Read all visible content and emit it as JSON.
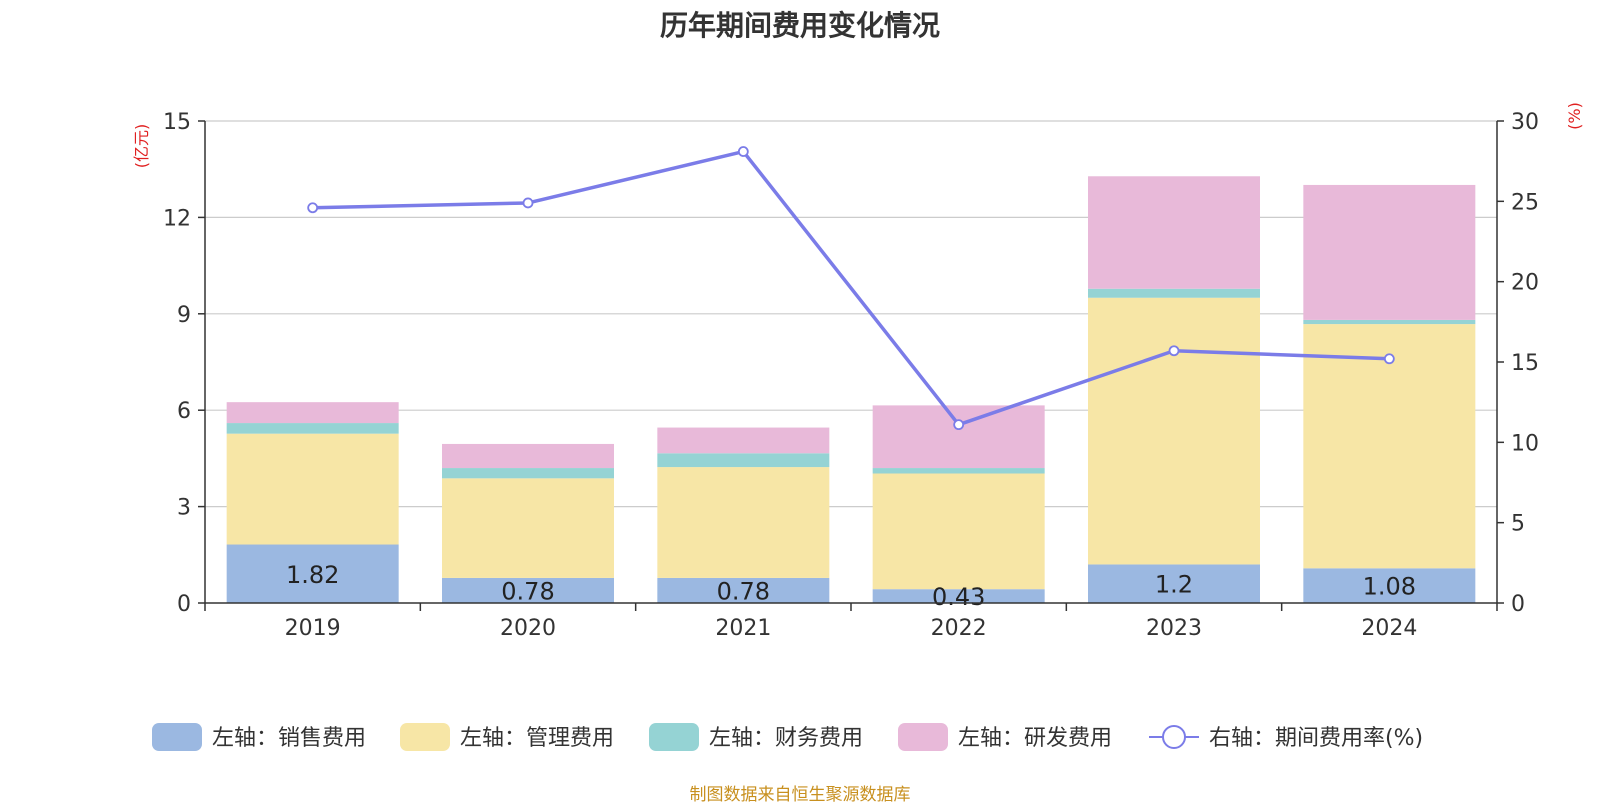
{
  "title": "历年期间费用变化情况",
  "source_note": "制图数据来自恒生聚源数据库",
  "colors": {
    "sales": "#9bb8e1",
    "admin": "#f7e6a6",
    "finance": "#95d3d4",
    "rd": "#e8b9d9",
    "line": "#7b7ce8",
    "axis_unit": "#e02020",
    "grid": "#cccccc",
    "text": "#333333"
  },
  "chart_data": {
    "type": "bar",
    "stacked": true,
    "title": "历年期间费用变化情况",
    "categories": [
      "2019",
      "2020",
      "2021",
      "2022",
      "2023",
      "2024"
    ],
    "left_axis": {
      "unit": "(亿元)",
      "ylim": [
        0,
        15
      ],
      "ticks": [
        "0",
        "3",
        "6",
        "9",
        "12",
        "15"
      ]
    },
    "right_axis": {
      "unit": "(%)",
      "ylim": [
        0,
        30
      ],
      "ticks": [
        "0",
        "5",
        "10",
        "15",
        "20",
        "25",
        "30"
      ]
    },
    "grid": true,
    "legend_position": "bottom",
    "series": [
      {
        "name": "左轴：销售费用",
        "key": "sales",
        "axis": "left",
        "values": [
          1.82,
          0.78,
          0.78,
          0.43,
          1.2,
          1.08
        ],
        "labels": [
          "1.82",
          "0.78",
          "0.78",
          "0.43",
          "1.2",
          "1.08"
        ]
      },
      {
        "name": "左轴：管理费用",
        "key": "admin",
        "axis": "left",
        "values": [
          3.45,
          3.1,
          3.45,
          3.6,
          8.3,
          7.6
        ]
      },
      {
        "name": "左轴：财务费用",
        "key": "finance",
        "axis": "left",
        "values": [
          0.33,
          0.32,
          0.43,
          0.17,
          0.28,
          0.13
        ]
      },
      {
        "name": "左轴：研发费用",
        "key": "rd",
        "axis": "left",
        "values": [
          0.65,
          0.75,
          0.8,
          1.95,
          3.5,
          4.2
        ]
      },
      {
        "name": "右轴：期间费用率(%)",
        "key": "line",
        "axis": "right",
        "type": "line",
        "values": [
          24.6,
          24.9,
          28.1,
          11.1,
          15.7,
          15.2
        ]
      }
    ]
  }
}
